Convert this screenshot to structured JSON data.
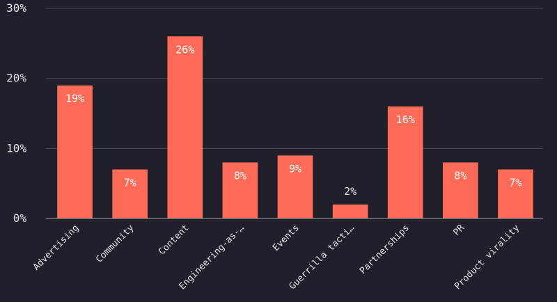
{
  "chart_data": {
    "type": "bar",
    "categories": [
      "Advertising",
      "Community",
      "Content",
      "Engineering-as-…",
      "Events",
      "Guerrilla tacti…",
      "Partnerships",
      "PR",
      "Product virality"
    ],
    "values": [
      19,
      7,
      26,
      8,
      9,
      2,
      16,
      8,
      7
    ],
    "value_labels": [
      "19%",
      "7%",
      "26%",
      "8%",
      "9%",
      "2%",
      "16%",
      "8%",
      "7%"
    ],
    "yticks": [
      0,
      10,
      20,
      30
    ],
    "ytick_labels": [
      "0%",
      "10%",
      "20%",
      "30%"
    ],
    "ylim": [
      0,
      30
    ],
    "grid": true,
    "legend": "none",
    "title": "",
    "xlabel": "",
    "ylabel": "",
    "colors": {
      "bar": "#ff6b57",
      "background": "#1f2029",
      "grid": "#4a4b55",
      "text": "#e4e4e8"
    }
  }
}
